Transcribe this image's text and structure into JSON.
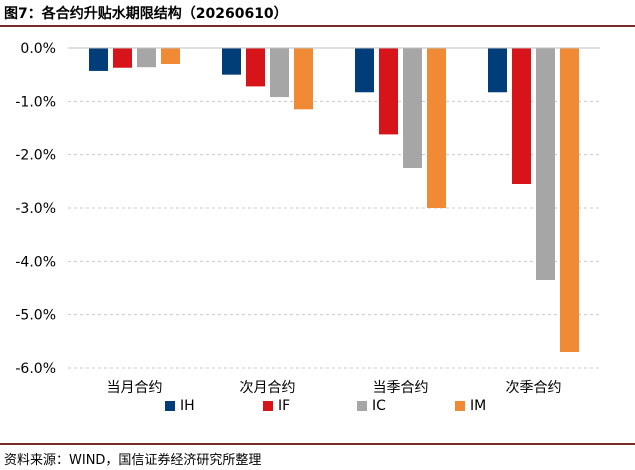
{
  "header": {
    "title": "图7：各合约升贴水期限结构（20260610）"
  },
  "footer": {
    "source": "资料来源：WIND，国信证券经济研究所整理"
  },
  "chart_data": {
    "type": "bar",
    "categories": [
      "当月合约",
      "次月合约",
      "当季合约",
      "次季合约"
    ],
    "series": [
      {
        "name": "IH",
        "color": "#003d79",
        "values": [
          -0.43,
          -0.5,
          -0.83,
          -0.83
        ]
      },
      {
        "name": "IF",
        "color": "#d7141a",
        "values": [
          -0.37,
          -0.72,
          -1.62,
          -2.55
        ]
      },
      {
        "name": "IC",
        "color": "#a6a6a6",
        "values": [
          -0.36,
          -0.92,
          -2.25,
          -4.35
        ]
      },
      {
        "name": "IM",
        "color": "#f08a34",
        "values": [
          -0.3,
          -1.15,
          -3.0,
          -5.7
        ]
      }
    ],
    "yticks": [
      "0.0%",
      "-1.0%",
      "-2.0%",
      "-3.0%",
      "-4.0%",
      "-5.0%",
      "-6.0%"
    ],
    "ylim": [
      -6.0,
      0.0
    ],
    "ylabel": "",
    "xlabel": "",
    "grid": true,
    "legend_position": "bottom"
  }
}
